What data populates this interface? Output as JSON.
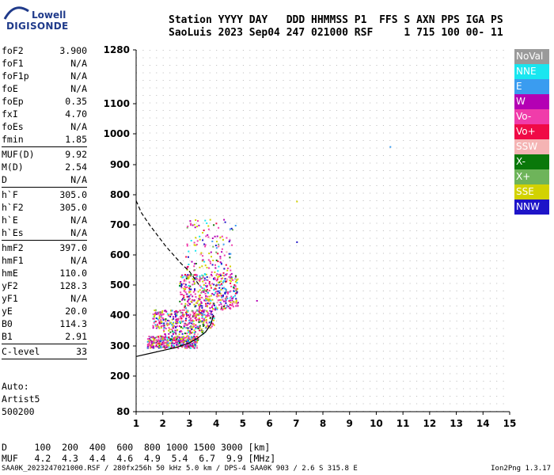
{
  "logo": {
    "line1": "Lowell",
    "line2": "DIGISONDE"
  },
  "header": {
    "line1": "Station YYYY DAY   DDD HHMMSS P1  FFS S AXN PPS IGA PS",
    "line2": "SaoLuis 2023 Sep04 247 021000 RSF     1 715 100 00- 11"
  },
  "params": [
    {
      "k": "foF2",
      "v": "3.900"
    },
    {
      "k": "foF1",
      "v": "N/A"
    },
    {
      "k": "foF1p",
      "v": "N/A"
    },
    {
      "k": "foE",
      "v": "N/A"
    },
    {
      "k": "foEp",
      "v": "0.35"
    },
    {
      "k": "fxI",
      "v": "4.70"
    },
    {
      "k": "foEs",
      "v": "N/A"
    },
    {
      "k": "fmin",
      "v": "1.85"
    },
    {
      "sep": true
    },
    {
      "k": "MUF(D)",
      "v": "9.92"
    },
    {
      "k": "M(D)",
      "v": "2.54"
    },
    {
      "k": "D",
      "v": "N/A"
    },
    {
      "sep": true
    },
    {
      "k": "h`F",
      "v": "305.0"
    },
    {
      "k": "h`F2",
      "v": "305.0"
    },
    {
      "k": "h`E",
      "v": "N/A"
    },
    {
      "k": "h`Es",
      "v": "N/A"
    },
    {
      "sep": true
    },
    {
      "k": "hmF2",
      "v": "397.0"
    },
    {
      "k": "hmF1",
      "v": "N/A"
    },
    {
      "k": "hmE",
      "v": "110.0"
    },
    {
      "k": "yF2",
      "v": "128.3"
    },
    {
      "k": "yF1",
      "v": "N/A"
    },
    {
      "k": "yE",
      "v": "20.0"
    },
    {
      "k": "B0",
      "v": "114.3"
    },
    {
      "k": "B1",
      "v": "2.91"
    },
    {
      "sep": true
    },
    {
      "k": "C-level",
      "v": "33"
    },
    {
      "sep": true
    }
  ],
  "auto": {
    "line1": "Auto:",
    "line2": "Artist5",
    "line3": "500200"
  },
  "muf_table": {
    "line1": "D     100  200  400  600  800 1000 1500 3000 [km]",
    "line2": "MUF   4.2  4.3  4.4  4.6  4.9  5.4  6.7  9.9 [MHz]"
  },
  "footer": "SAA0K_2023247021000.RSF / 280fx256h 50 kHz 5.0 km / DPS-4 SAA0K 903 / 2.6 S 315.8 E",
  "version": "Ion2Png 1.3.17",
  "legend": [
    {
      "label": "NoVal",
      "color": "#9a9a9a"
    },
    {
      "label": "NNE",
      "color": "#19e6f0"
    },
    {
      "label": "E",
      "color": "#3a9cf0"
    },
    {
      "label": "W",
      "color": "#b400b4"
    },
    {
      "label": "Vo-",
      "color": "#f03caa"
    },
    {
      "label": "Vo+",
      "color": "#f00a46"
    },
    {
      "label": "SSW",
      "color": "#f5b4b4"
    },
    {
      "label": "X-",
      "color": "#0a780a"
    },
    {
      "label": "X+",
      "color": "#6eb45a"
    },
    {
      "label": "SSE",
      "color": "#d2d200"
    },
    {
      "label": "NNW",
      "color": "#1e14c8"
    }
  ],
  "chart_data": {
    "type": "scatter",
    "title": "",
    "xlabel": "",
    "ylabel": "",
    "xlim": [
      1,
      15
    ],
    "ylim": [
      80,
      1280
    ],
    "xticks": [
      1,
      2,
      3,
      4,
      5,
      6,
      7,
      8,
      9,
      10,
      11,
      12,
      13,
      14,
      15
    ],
    "yticks": [
      80,
      200,
      300,
      400,
      500,
      600,
      700,
      800,
      900,
      1000,
      1100,
      1280
    ],
    "grid": true,
    "traces": [
      {
        "name": "dashed profile",
        "style": "dashed",
        "x": [
          1.0,
          1.2,
          1.5,
          1.8,
          2.1,
          2.4,
          2.7,
          3.0,
          3.2,
          3.4
        ],
        "y": [
          780,
          740,
          700,
          665,
          630,
          600,
          570,
          545,
          520,
          495
        ]
      },
      {
        "name": "solid profile",
        "style": "solid",
        "x": [
          1.0,
          1.5,
          2.0,
          2.5,
          3.0,
          3.3,
          3.6,
          3.8,
          3.9
        ],
        "y": [
          265,
          275,
          285,
          295,
          310,
          325,
          345,
          370,
          400
        ]
      }
    ],
    "isolated_points": [
      {
        "x": 10.5,
        "y": 960,
        "color": "#3a9cf0"
      },
      {
        "x": 7.0,
        "y": 645,
        "color": "#1e14c8"
      },
      {
        "x": 7.0,
        "y": 780,
        "color": "#d2d200"
      },
      {
        "x": 5.5,
        "y": 450,
        "color": "#b400b4"
      },
      {
        "x": 4.7,
        "y": 700,
        "color": "#3a9cf0"
      }
    ],
    "clusters": [
      {
        "x0": 1.4,
        "x1": 3.3,
        "y0": 295,
        "y1": 335,
        "n": 380
      },
      {
        "x0": 1.6,
        "x1": 3.9,
        "y0": 360,
        "y1": 420,
        "n": 360
      },
      {
        "x0": 2.6,
        "x1": 4.8,
        "y0": 420,
        "y1": 540,
        "n": 420
      },
      {
        "x0": 2.8,
        "x1": 4.6,
        "y0": 540,
        "y1": 720,
        "n": 130
      },
      {
        "x0": 2.0,
        "x1": 3.5,
        "y0": 340,
        "y1": 360,
        "n": 60
      }
    ]
  }
}
